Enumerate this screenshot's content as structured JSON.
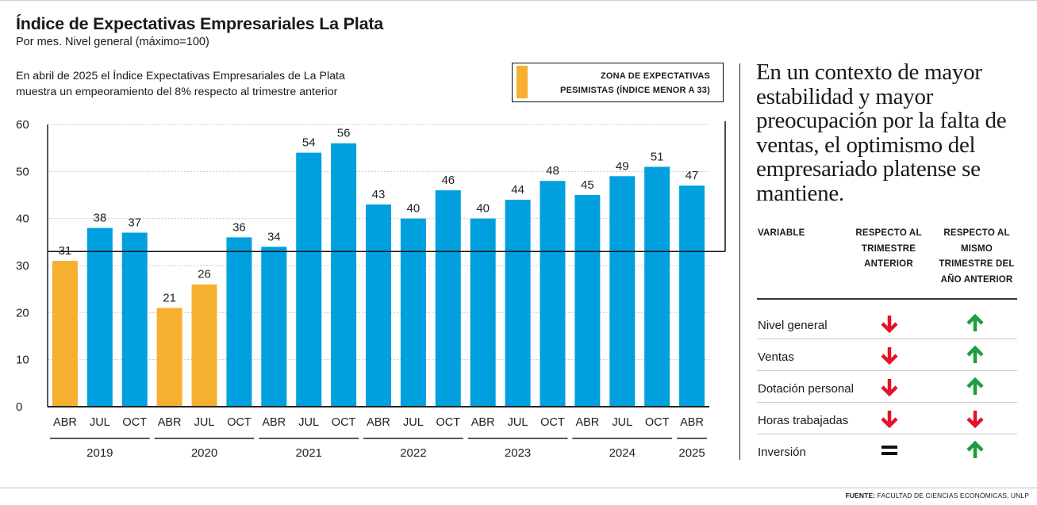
{
  "title": "Índice de Expectativas Empresariales La Plata",
  "subtitle": "Por mes. Nivel general (máximo=100)",
  "note_line1": "En abril de 2025 el Índice Expectativas Empresariales de La Plata",
  "note_line2": "muestra un empeoramiento del 8% respecto al trimestre anterior",
  "legend": {
    "line1": "ZONA DE EXPECTATIVAS",
    "line2": "PESIMISTAS (ÍNDICE MENOR A 33)",
    "color": "#f6b02f"
  },
  "colors": {
    "pessimistic": "#f6b02f",
    "normal": "#00a0df",
    "up": "#1e9e3e",
    "down": "#e3142a"
  },
  "chart_data": {
    "type": "bar",
    "categories": [
      "ABR",
      "JUL",
      "OCT",
      "ABR",
      "JUL",
      "OCT",
      "ABR",
      "JUL",
      "OCT",
      "ABR",
      "JUL",
      "OCT",
      "ABR",
      "JUL",
      "OCT",
      "ABR",
      "JUL",
      "OCT",
      "ABR"
    ],
    "years": [
      {
        "label": "2019",
        "count": 3
      },
      {
        "label": "2020",
        "count": 3
      },
      {
        "label": "2021",
        "count": 3
      },
      {
        "label": "2022",
        "count": 3
      },
      {
        "label": "2023",
        "count": 3
      },
      {
        "label": "2024",
        "count": 3
      },
      {
        "label": "2025",
        "count": 1
      }
    ],
    "values": [
      31,
      38,
      37,
      21,
      26,
      36,
      34,
      54,
      56,
      43,
      40,
      46,
      40,
      44,
      48,
      45,
      49,
      51,
      47
    ],
    "threshold": 33,
    "ylim": [
      0,
      60
    ],
    "yticks": [
      0,
      10,
      20,
      30,
      40,
      50,
      60
    ],
    "grid": true
  },
  "quote": "En un contexto de mayor estabilidad y mayor preocupación por la falta de ventas, el optimismo del empresariado platense se mantiene.",
  "table": {
    "header_var": "VARIABLE",
    "header_prev": "RESPECTO AL TRIMESTRE ANTERIOR",
    "header_year": "RESPECTO AL MISMO TRIMESTRE DEL AÑO ANTERIOR",
    "rows": [
      {
        "label": "Nivel general",
        "prev": "down",
        "year": "up"
      },
      {
        "label": "Ventas",
        "prev": "down",
        "year": "up"
      },
      {
        "label": "Dotación personal",
        "prev": "down",
        "year": "up"
      },
      {
        "label": "Horas trabajadas",
        "prev": "down",
        "year": "down"
      },
      {
        "label": "Inversión",
        "prev": "equal",
        "year": "up"
      }
    ]
  },
  "source_label": "FUENTE:",
  "source_text": "FACULTAD DE CIENCIAS ECONÓMICAS, UNLP"
}
